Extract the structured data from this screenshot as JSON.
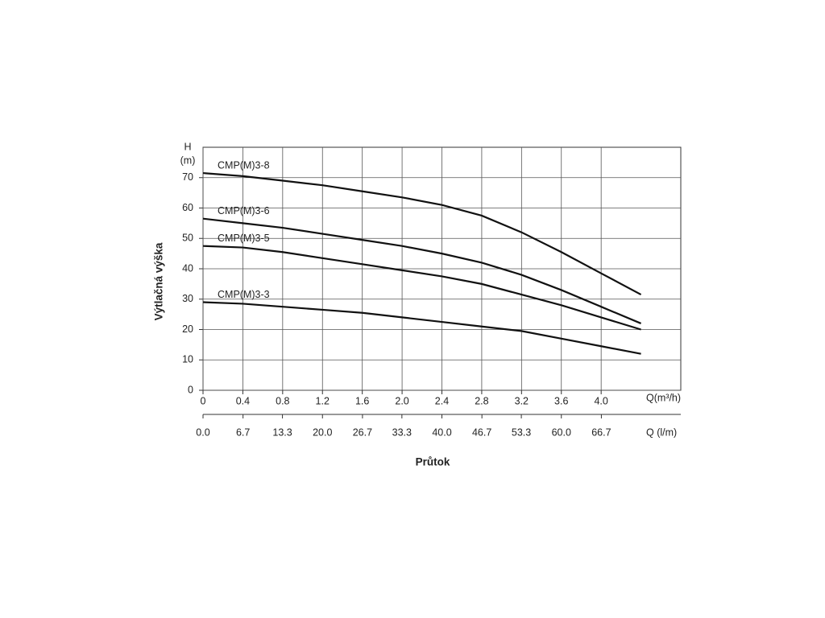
{
  "chart_data": {
    "type": "line",
    "y_axis_symbol": "H",
    "y_axis_unit": "(m)",
    "y_axis_label": "Výtlačná výška",
    "x_axis_label": "Průtok",
    "x_axis_unit_label": "Q(m³/h)",
    "x2_axis_unit_label": "Q (l/m)",
    "xlim": [
      0,
      4.8
    ],
    "xticks": [
      0,
      0.4,
      0.8,
      1.2,
      1.6,
      {
        "value": 2,
        "label": "2.0"
      },
      2.4,
      2.8,
      3.2,
      3.6,
      {
        "value": 4,
        "label": "4.0"
      }
    ],
    "x2lim": [
      0,
      80
    ],
    "x2ticks": [
      {
        "value": 0,
        "label": "0.0"
      },
      6.7,
      13.3,
      {
        "value": 20,
        "label": "20.0"
      },
      26.7,
      33.3,
      {
        "value": 40,
        "label": "40.0"
      },
      46.7,
      53.3,
      {
        "value": 60,
        "label": "60.0"
      },
      66.7
    ],
    "ylim": [
      0,
      80
    ],
    "yticks": [
      0,
      10,
      20,
      30,
      40,
      50,
      60,
      70
    ],
    "grid": true,
    "x": [
      0,
      0.4,
      0.8,
      1.2,
      1.6,
      2.0,
      2.4,
      2.8,
      3.2,
      3.6,
      4.0,
      4.4
    ],
    "series": [
      {
        "name": "CMP(M)3-8",
        "color": "#111111",
        "values": [
          71.5,
          70.5,
          69,
          67.5,
          65.5,
          63.5,
          61,
          57.5,
          52,
          45.5,
          38.5,
          31.5
        ]
      },
      {
        "name": "CMP(M)3-6",
        "color": "#111111",
        "values": [
          56.5,
          55,
          53.5,
          51.5,
          49.5,
          47.5,
          45,
          42,
          38,
          33,
          27.5,
          22
        ]
      },
      {
        "name": "CMP(M)3-5",
        "color": "#111111",
        "values": [
          47.5,
          47,
          45.5,
          43.5,
          41.5,
          39.5,
          37.5,
          35,
          31.5,
          28,
          24,
          20
        ]
      },
      {
        "name": "CMP(M)3-3",
        "color": "#111111",
        "values": [
          29,
          28.5,
          27.5,
          26.5,
          25.5,
          24,
          22.5,
          21,
          19.5,
          17,
          14.5,
          12
        ]
      }
    ]
  }
}
